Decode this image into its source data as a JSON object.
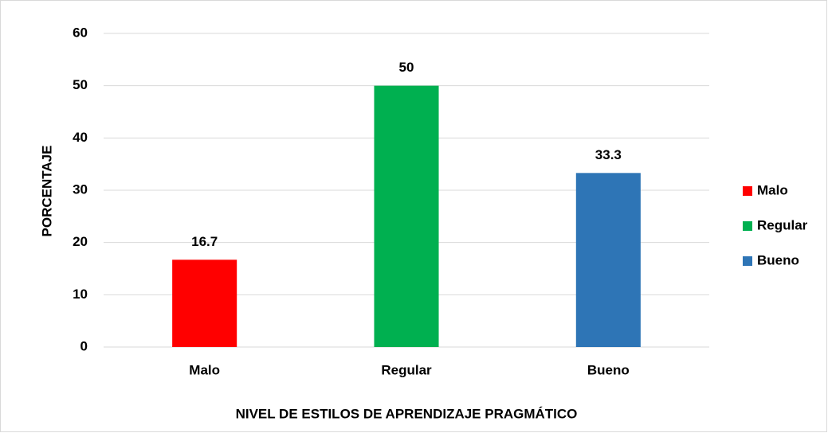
{
  "chart_data": {
    "type": "bar",
    "x_label": "NIVEL DE ESTILOS DE APRENDIZAJE PRAGMÁTICO",
    "y_label": "PORCENTAJE",
    "categories": [
      "Malo",
      "Regular",
      "Bueno"
    ],
    "values": [
      16.7,
      50,
      33.3
    ],
    "colors": [
      "#ff0000",
      "#00b050",
      "#2e75b6"
    ],
    "ylim": [
      0,
      60
    ],
    "yticks": [
      0,
      10,
      20,
      30,
      40,
      50,
      60
    ],
    "grid": true,
    "legend": "right"
  }
}
